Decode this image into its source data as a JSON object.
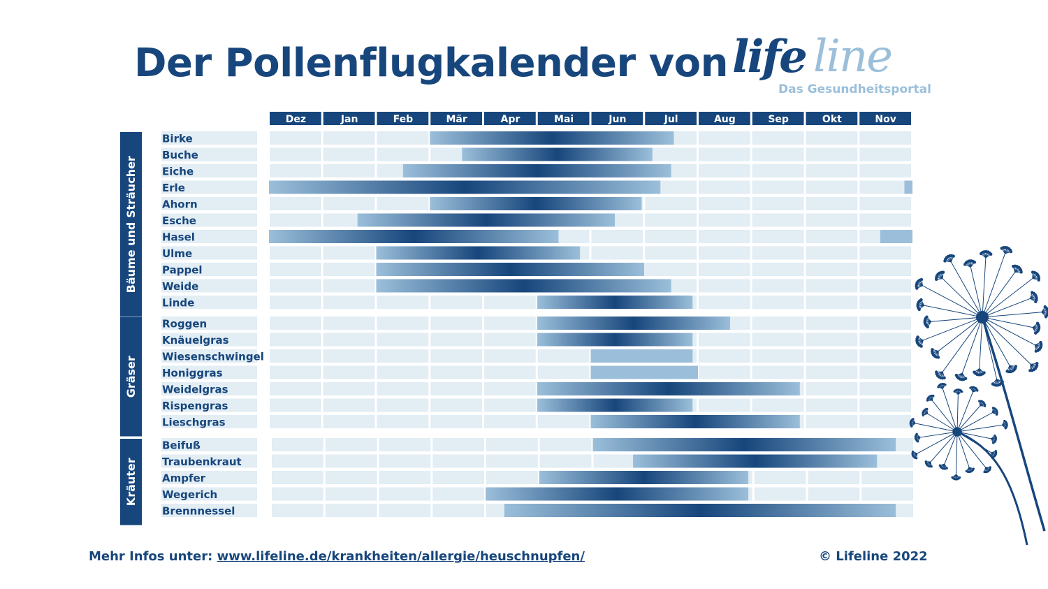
{
  "title": "Der Pollenflugkalender von",
  "logo": {
    "part1": "life",
    "part2": "line",
    "subtitle": "Das Gesundheitsportal"
  },
  "footer": {
    "prefix": "Mehr Infos unter: ",
    "link": "www.lifeline.de/krankheiten/allergie/heuschnupfen/",
    "copyright": "© Lifeline 2022"
  },
  "colors": {
    "dark": "#17467c",
    "light": "#9bbfda",
    "cell": "#e2edf4"
  },
  "chart_data": {
    "type": "bar",
    "subtype": "gantt",
    "months": [
      "Dez",
      "Jan",
      "Feb",
      "Mär",
      "Apr",
      "Mai",
      "Jun",
      "Jul",
      "Aug",
      "Sep",
      "Okt",
      "Nov"
    ],
    "unit": "months since start of December",
    "groups": [
      {
        "name": "Bäume und Sträucher",
        "items": [
          {
            "name": "Birke",
            "segments": [
              [
                3.0,
                7.55
              ]
            ]
          },
          {
            "name": "Buche",
            "segments": [
              [
                3.6,
                7.15
              ]
            ]
          },
          {
            "name": "Eiche",
            "segments": [
              [
                2.5,
                7.5
              ]
            ]
          },
          {
            "name": "Erle",
            "segments": [
              [
                0.0,
                7.3
              ],
              [
                11.85,
                12.0
              ]
            ]
          },
          {
            "name": "Ahorn",
            "segments": [
              [
                3.0,
                6.95
              ]
            ]
          },
          {
            "name": "Esche",
            "segments": [
              [
                1.65,
                6.45
              ]
            ]
          },
          {
            "name": "Hasel",
            "segments": [
              [
                0.0,
                5.4
              ],
              [
                11.4,
                12.0
              ]
            ]
          },
          {
            "name": "Ulme",
            "segments": [
              [
                2.0,
                5.8
              ]
            ]
          },
          {
            "name": "Pappel",
            "segments": [
              [
                2.0,
                7.0
              ]
            ]
          },
          {
            "name": "Weide",
            "segments": [
              [
                2.0,
                7.5
              ]
            ]
          },
          {
            "name": "Linde",
            "segments": [
              [
                5.0,
                7.9
              ]
            ]
          }
        ]
      },
      {
        "name": "Gräser",
        "items": [
          {
            "name": "Roggen",
            "segments": [
              [
                5.0,
                8.6
              ]
            ]
          },
          {
            "name": "Knäuelgras",
            "segments": [
              [
                5.0,
                7.9
              ]
            ]
          },
          {
            "name": "Wiesenschwingel",
            "segments": [
              [
                6.0,
                7.9
              ]
            ]
          },
          {
            "name": "Honiggras",
            "segments": [
              [
                6.0,
                8.0
              ]
            ]
          },
          {
            "name": "Weidelgras",
            "segments": [
              [
                5.0,
                9.9
              ]
            ]
          },
          {
            "name": "Rispengras",
            "segments": [
              [
                5.0,
                7.9
              ]
            ]
          },
          {
            "name": "Lieschgras",
            "segments": [
              [
                6.0,
                9.9
              ]
            ]
          }
        ]
      },
      {
        "name": "Kräuter",
        "items": [
          {
            "name": "Beifuß",
            "segments": [
              [
                6.0,
                11.65
              ]
            ]
          },
          {
            "name": "Traubenkraut",
            "segments": [
              [
                6.75,
                11.3
              ]
            ]
          },
          {
            "name": "Ampfer",
            "segments": [
              [
                5.0,
                8.9
              ]
            ]
          },
          {
            "name": "Wegerich",
            "segments": [
              [
                4.0,
                8.9
              ]
            ]
          },
          {
            "name": "Brennnessel",
            "segments": [
              [
                4.35,
                11.65
              ]
            ]
          }
        ]
      }
    ]
  }
}
